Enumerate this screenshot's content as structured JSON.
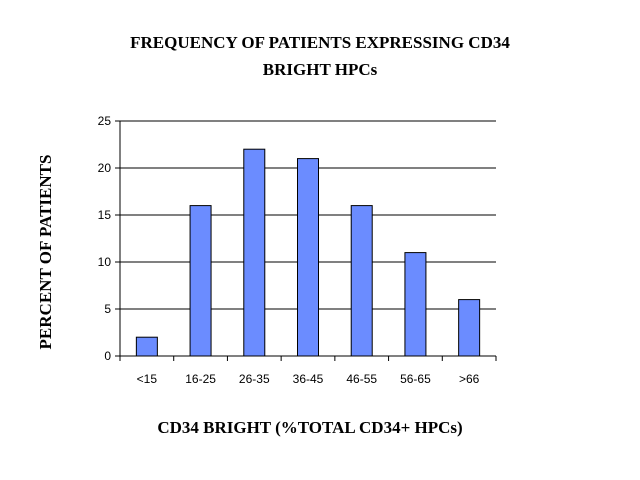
{
  "chart_data": {
    "type": "bar",
    "title_lines": [
      "FREQUENCY OF PATIENTS EXPRESSING CD34",
      "BRIGHT HPCs"
    ],
    "xlabel": "CD34 BRIGHT (%TOTAL CD34+ HPCs)",
    "ylabel": "PERCENT OF PATIENTS",
    "categories": [
      "<15",
      "16-25",
      "26-35",
      "36-45",
      "46-55",
      "56-65",
      ">66"
    ],
    "values": [
      2,
      16,
      22,
      21,
      16,
      11,
      6
    ],
    "ylim": [
      0,
      25
    ],
    "yticks": [
      0,
      5,
      10,
      15,
      20,
      25
    ],
    "grid": true,
    "bar_color": "#6b8cff",
    "bar_edge_color": "#000000"
  }
}
